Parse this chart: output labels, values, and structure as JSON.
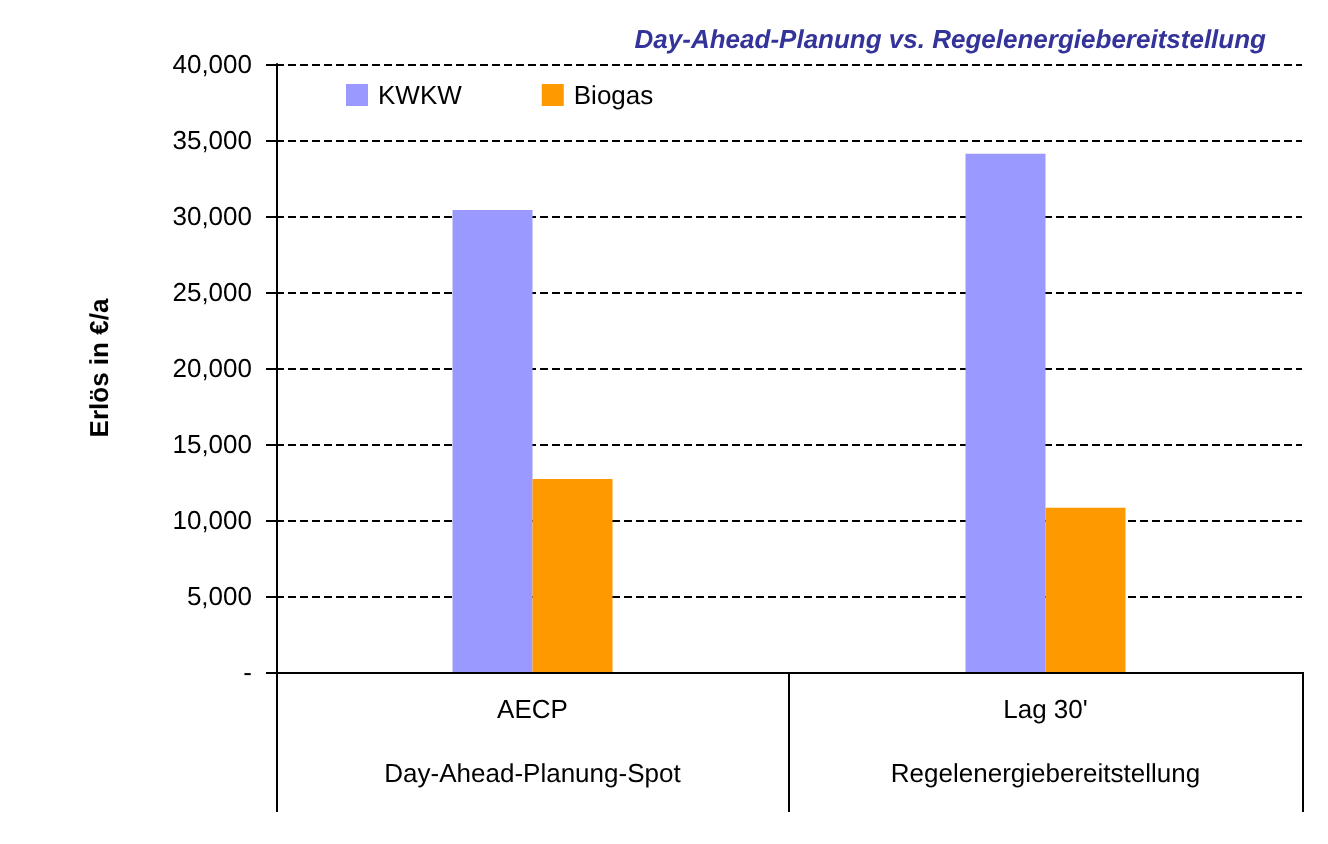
{
  "chart_data": {
    "type": "bar",
    "title": "Day-Ahead-Planung vs. Regelenergiebereitstellung",
    "ylabel": "Erlös in €/a",
    "categories": [
      "AECP",
      "Lag 30'"
    ],
    "series": [
      {
        "name": "KWKW",
        "color": "#9999ff",
        "values": [
          30400,
          34100
        ]
      },
      {
        "name": "Biogas",
        "color": "#ff9900",
        "values": [
          12700,
          10800
        ]
      }
    ],
    "ylim": [
      0,
      40000
    ],
    "yticks": [
      {
        "value": 0,
        "label": "-"
      },
      {
        "value": 5000,
        "label": "5,000"
      },
      {
        "value": 10000,
        "label": "10,000"
      },
      {
        "value": 15000,
        "label": "15,000"
      },
      {
        "value": 20000,
        "label": "20,000"
      },
      {
        "value": 25000,
        "label": "25,000"
      },
      {
        "value": 30000,
        "label": "30,000"
      },
      {
        "value": 35000,
        "label": "35,000"
      },
      {
        "value": 40000,
        "label": "40,000"
      }
    ],
    "grid": "y",
    "line_style": "dashed",
    "legend": "top left",
    "annotations": [
      "Day-Ahead-Planung-Spot",
      "Regelenergiebereitstellung"
    ]
  }
}
